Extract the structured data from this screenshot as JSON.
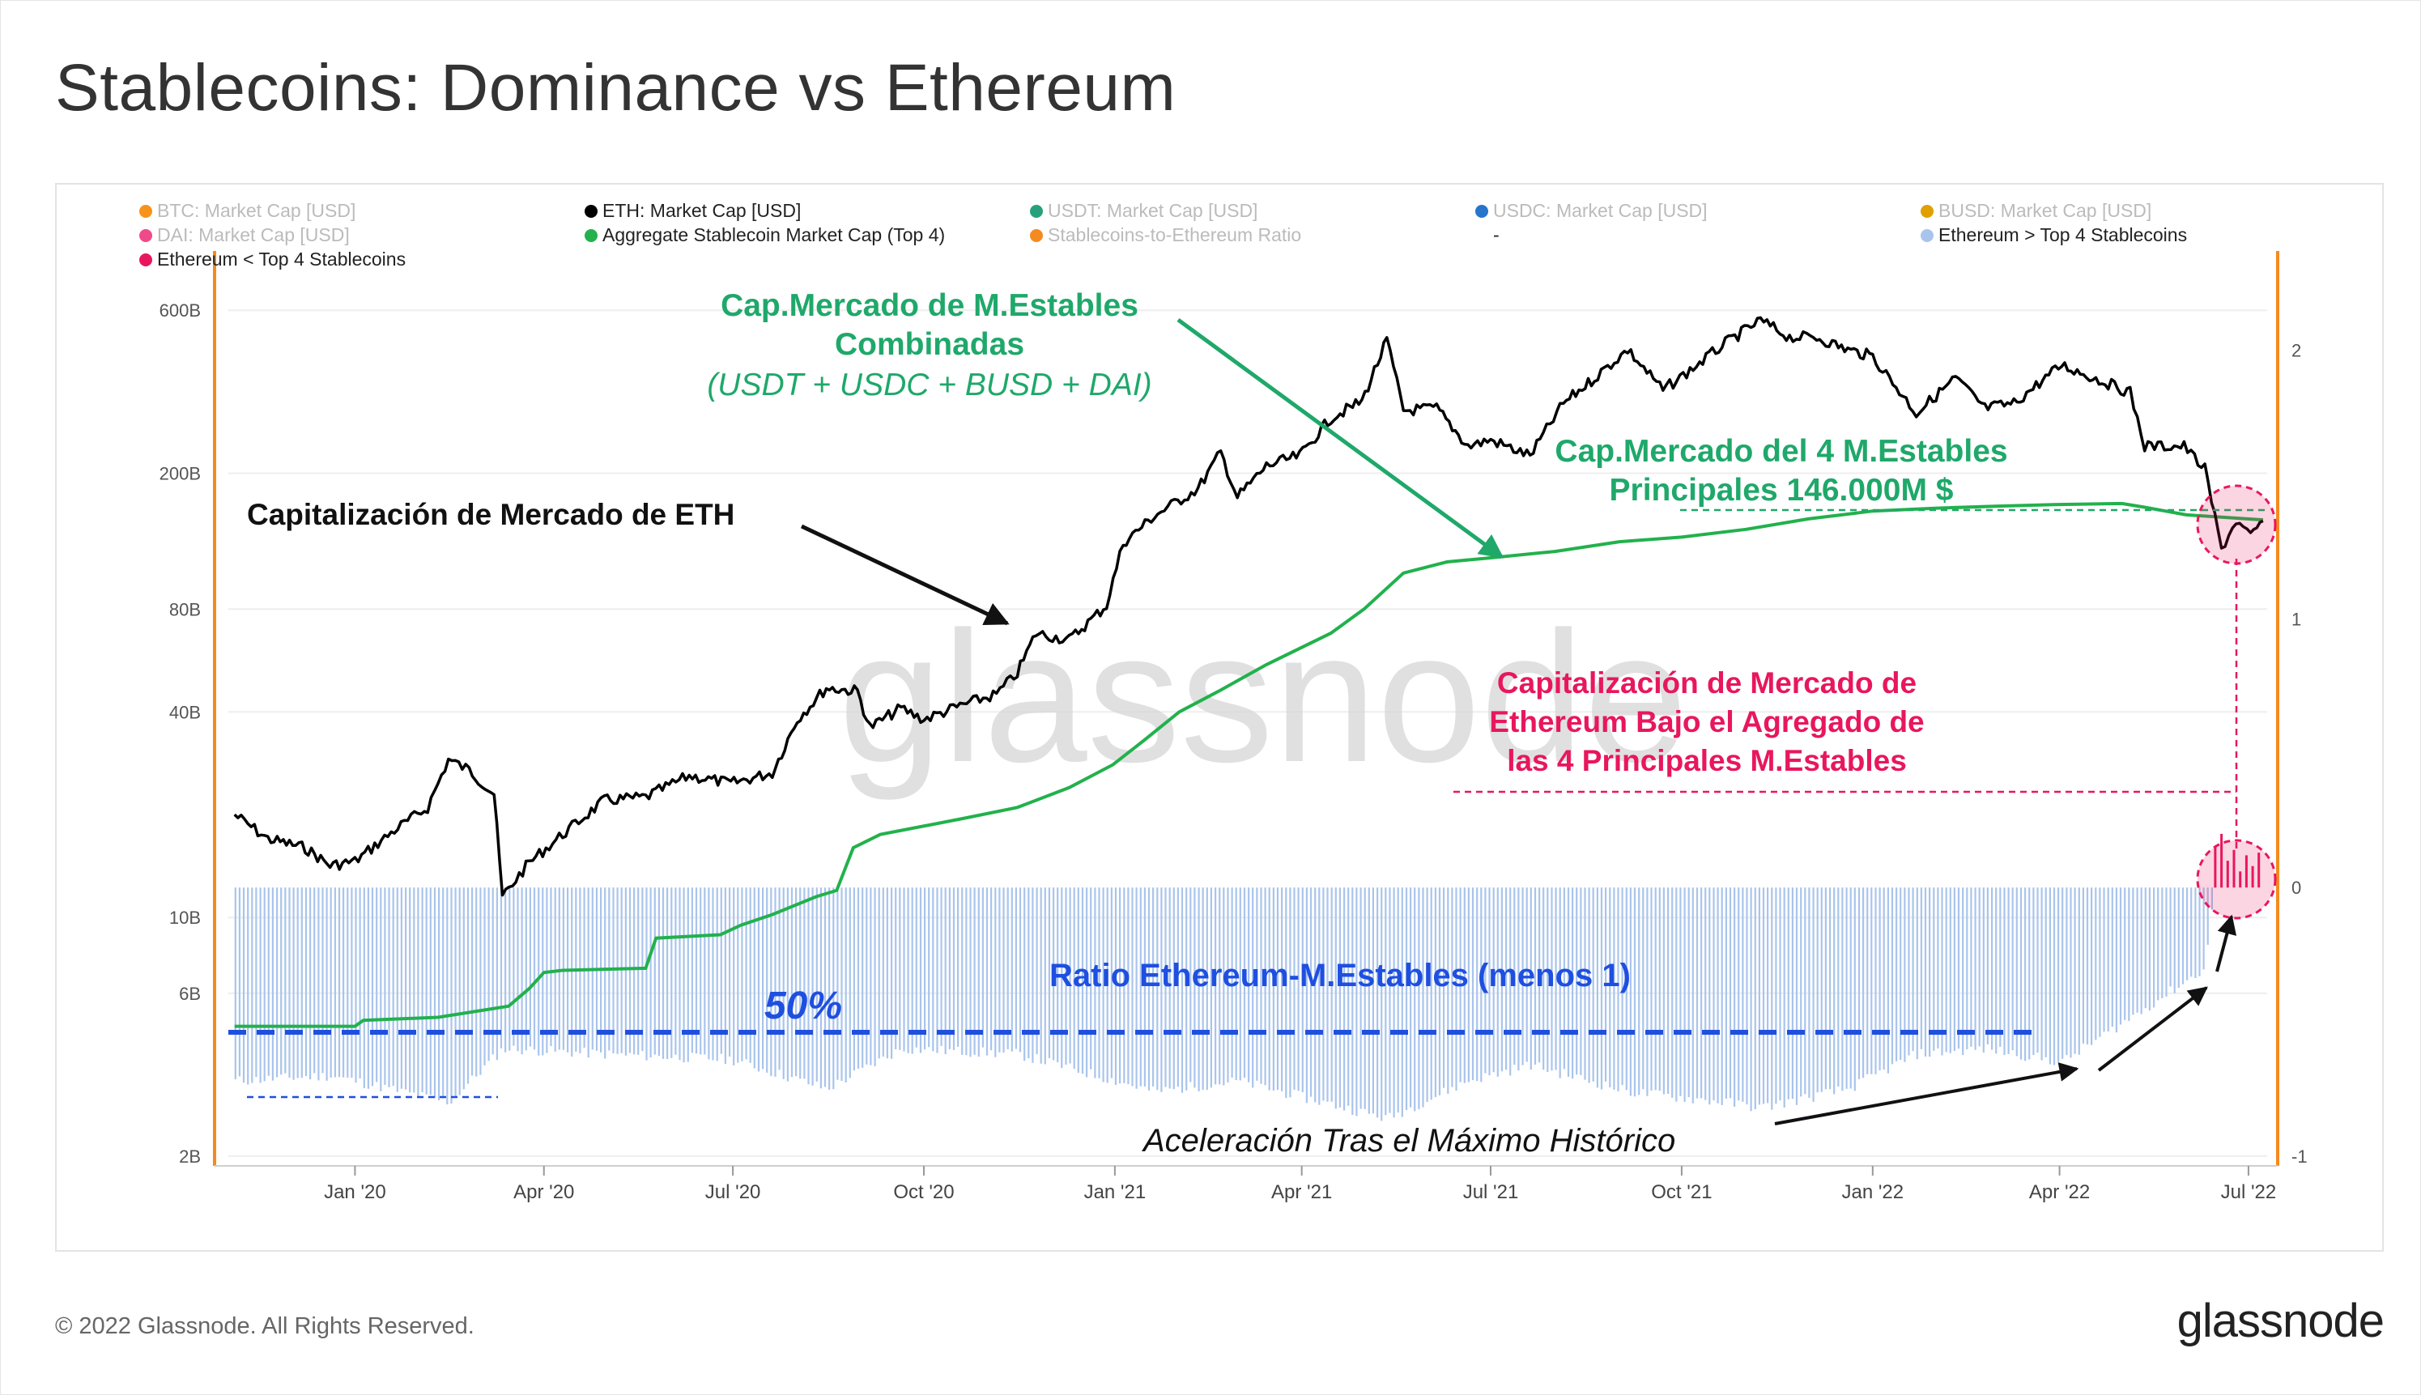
{
  "page": {
    "title": "Stablecoins: Dominance vs Ethereum",
    "copyright": "© 2022 Glassnode. All Rights Reserved.",
    "logo": "glassnode",
    "watermark": "glassnode"
  },
  "chart_data": {
    "type": "line",
    "title": "Stablecoins: Dominance vs Ethereum",
    "legend_placement": "top-left",
    "legend": [
      {
        "label": "BTC: Market Cap [USD]",
        "color": "#f7931a",
        "active": false
      },
      {
        "label": "ETH: Market Cap [USD]",
        "color": "#000000",
        "active": true
      },
      {
        "label": "USDT: Market Cap [USD]",
        "color": "#26a17b",
        "active": false
      },
      {
        "label": "USDC: Market Cap [USD]",
        "color": "#2775ca",
        "active": false
      },
      {
        "label": "BUSD: Market Cap [USD]",
        "color": "#e0a000",
        "active": false
      },
      {
        "label": "DAI: Market Cap [USD]",
        "color": "#ef4a8a",
        "active": false
      },
      {
        "label": "Aggregate Stablecoin Market Cap (Top 4)",
        "color": "#22b14c",
        "active": true
      },
      {
        "label": "Stablecoins-to-Ethereum Ratio",
        "color": "#f58a1f",
        "active": false
      },
      {
        "label": "-",
        "color": "none",
        "active": true
      },
      {
        "label": "Ethereum > Top 4 Stablecoins",
        "color": "#a9c4ec",
        "active": true
      },
      {
        "label": "Ethereum < Top 4 Stablecoins",
        "color": "#e8175d",
        "active": true
      }
    ],
    "x_axis": {
      "type": "date",
      "range": [
        "2019-11-01",
        "2022-07-10"
      ],
      "ticks": [
        {
          "date": "2020-01-01",
          "label": "Jan '20"
        },
        {
          "date": "2020-04-01",
          "label": "Apr '20"
        },
        {
          "date": "2020-07-01",
          "label": "Jul '20"
        },
        {
          "date": "2020-10-01",
          "label": "Oct '20"
        },
        {
          "date": "2021-01-01",
          "label": "Jan '21"
        },
        {
          "date": "2021-04-01",
          "label": "Apr '21"
        },
        {
          "date": "2021-07-01",
          "label": "Jul '21"
        },
        {
          "date": "2021-10-01",
          "label": "Oct '21"
        },
        {
          "date": "2022-01-01",
          "label": "Jan '22"
        },
        {
          "date": "2022-04-01",
          "label": "Apr '22"
        },
        {
          "date": "2022-07-01",
          "label": "Jul '22"
        }
      ]
    },
    "y_left": {
      "scale": "log",
      "unit": "USD",
      "range": [
        2000000000.0,
        700000000000.0
      ],
      "ticks": [
        {
          "value": 2000000000.0,
          "label": "2B"
        },
        {
          "value": 6000000000.0,
          "label": "6B"
        },
        {
          "value": 10000000000.0,
          "label": "10B"
        },
        {
          "value": 40000000000.0,
          "label": "40B"
        },
        {
          "value": 80000000000.0,
          "label": "80B"
        },
        {
          "value": 200000000000.0,
          "label": "200B"
        },
        {
          "value": 600000000000.0,
          "label": "600B"
        }
      ]
    },
    "y_right": {
      "scale": "linear",
      "range": [
        -1,
        2.4
      ],
      "ticks": [
        {
          "value": -1,
          "label": "-1"
        },
        {
          "value": 0,
          "label": "0"
        },
        {
          "value": 1,
          "label": "1"
        },
        {
          "value": 2,
          "label": "2"
        }
      ]
    },
    "series": [
      {
        "name": "ETH: Market Cap [USD]",
        "axis": "left",
        "color": "#000000",
        "points": [
          [
            "2019-11-04",
            20000000000.0
          ],
          [
            "2019-11-20",
            17000000000.0
          ],
          [
            "2019-12-08",
            16000000000.0
          ],
          [
            "2019-12-20",
            14200000000.0
          ],
          [
            "2020-01-01",
            14600000000.0
          ],
          [
            "2020-01-20",
            18000000000.0
          ],
          [
            "2020-02-05",
            21000000000.0
          ],
          [
            "2020-02-15",
            29000000000.0
          ],
          [
            "2020-02-25",
            27000000000.0
          ],
          [
            "2020-03-08",
            23000000000.0
          ],
          [
            "2020-03-12",
            11500000000.0
          ],
          [
            "2020-03-25",
            14500000000.0
          ],
          [
            "2020-04-10",
            17500000000.0
          ],
          [
            "2020-04-30",
            22000000000.0
          ],
          [
            "2020-05-20",
            22500000000.0
          ],
          [
            "2020-06-10",
            26000000000.0
          ],
          [
            "2020-06-30",
            24700000000.0
          ],
          [
            "2020-07-20",
            26500000000.0
          ],
          [
            "2020-08-01",
            38000000000.0
          ],
          [
            "2020-08-15",
            47000000000.0
          ],
          [
            "2020-08-30",
            46000000000.0
          ],
          [
            "2020-09-05",
            36000000000.0
          ],
          [
            "2020-09-20",
            41000000000.0
          ],
          [
            "2020-10-01",
            38000000000.0
          ],
          [
            "2020-10-20",
            42000000000.0
          ],
          [
            "2020-11-05",
            45000000000.0
          ],
          [
            "2020-11-15",
            52000000000.0
          ],
          [
            "2020-11-24",
            68000000000.0
          ],
          [
            "2020-12-10",
            65000000000.0
          ],
          [
            "2020-12-28",
            82000000000.0
          ],
          [
            "2021-01-05",
            125000000000.0
          ],
          [
            "2021-01-20",
            150000000000.0
          ],
          [
            "2021-02-10",
            180000000000.0
          ],
          [
            "2021-02-21",
            230000000000.0
          ],
          [
            "2021-03-01",
            170000000000.0
          ],
          [
            "2021-03-15",
            210000000000.0
          ],
          [
            "2021-03-31",
            225000000000.0
          ],
          [
            "2021-04-15",
            290000000000.0
          ],
          [
            "2021-04-30",
            325000000000.0
          ],
          [
            "2021-05-12",
            490000000000.0
          ],
          [
            "2021-05-20",
            305000000000.0
          ],
          [
            "2021-06-05",
            310000000000.0
          ],
          [
            "2021-06-20",
            240000000000.0
          ],
          [
            "2021-07-01",
            250000000000.0
          ],
          [
            "2021-07-20",
            225000000000.0
          ],
          [
            "2021-08-05",
            320000000000.0
          ],
          [
            "2021-08-20",
            380000000000.0
          ],
          [
            "2021-09-05",
            460000000000.0
          ],
          [
            "2021-09-22",
            350000000000.0
          ],
          [
            "2021-10-05",
            400000000000.0
          ],
          [
            "2021-10-22",
            480000000000.0
          ],
          [
            "2021-11-08",
            560000000000.0
          ],
          [
            "2021-11-22",
            500000000000.0
          ],
          [
            "2021-12-05",
            500000000000.0
          ],
          [
            "2021-12-20",
            460000000000.0
          ],
          [
            "2022-01-01",
            440000000000.0
          ],
          [
            "2022-01-22",
            300000000000.0
          ],
          [
            "2022-02-10",
            380000000000.0
          ],
          [
            "2022-02-24",
            310000000000.0
          ],
          [
            "2022-03-10",
            320000000000.0
          ],
          [
            "2022-04-02",
            415000000000.0
          ],
          [
            "2022-04-20",
            375000000000.0
          ],
          [
            "2022-05-05",
            345000000000.0
          ],
          [
            "2022-05-12",
            240000000000.0
          ],
          [
            "2022-05-31",
            240000000000.0
          ],
          [
            "2022-06-10",
            205000000000.0
          ],
          [
            "2022-06-18",
            120000000000.0
          ],
          [
            "2022-06-25",
            145000000000.0
          ],
          [
            "2022-07-02",
            130000000000.0
          ],
          [
            "2022-07-08",
            145000000000.0
          ]
        ]
      },
      {
        "name": "Aggregate Stablecoin Market Cap (Top 4)",
        "axis": "left",
        "color": "#22b14c",
        "points": [
          [
            "2019-11-04",
            4800000000.0
          ],
          [
            "2020-01-01",
            4800000000.0
          ],
          [
            "2020-01-05",
            5000000000.0
          ],
          [
            "2020-02-10",
            5100000000.0
          ],
          [
            "2020-03-15",
            5500000000.0
          ],
          [
            "2020-03-25",
            6200000000.0
          ],
          [
            "2020-04-01",
            6900000000.0
          ],
          [
            "2020-04-10",
            7000000000.0
          ],
          [
            "2020-05-20",
            7100000000.0
          ],
          [
            "2020-05-25",
            8700000000.0
          ],
          [
            "2020-06-25",
            8900000000.0
          ],
          [
            "2020-07-05",
            9500000000.0
          ],
          [
            "2020-07-20",
            10200000000.0
          ],
          [
            "2020-08-10",
            11500000000.0
          ],
          [
            "2020-08-20",
            12000000000.0
          ],
          [
            "2020-08-28",
            16000000000.0
          ],
          [
            "2020-09-10",
            17500000000.0
          ],
          [
            "2020-10-20",
            19500000000.0
          ],
          [
            "2020-11-15",
            21000000000.0
          ],
          [
            "2020-12-10",
            24000000000.0
          ],
          [
            "2020-12-31",
            28000000000.0
          ],
          [
            "2021-01-15",
            33000000000.0
          ],
          [
            "2021-02-01",
            40000000000.0
          ],
          [
            "2021-02-20",
            46000000000.0
          ],
          [
            "2021-03-15",
            55000000000.0
          ],
          [
            "2021-04-15",
            68000000000.0
          ],
          [
            "2021-05-01",
            80000000000.0
          ],
          [
            "2021-05-20",
            102000000000.0
          ],
          [
            "2021-06-10",
            110000000000.0
          ],
          [
            "2021-07-01",
            113000000000.0
          ],
          [
            "2021-08-01",
            118000000000.0
          ],
          [
            "2021-09-01",
            126000000000.0
          ],
          [
            "2021-10-01",
            130000000000.0
          ],
          [
            "2021-11-01",
            137000000000.0
          ],
          [
            "2021-12-01",
            147000000000.0
          ],
          [
            "2022-01-01",
            155000000000.0
          ],
          [
            "2022-02-01",
            158000000000.0
          ],
          [
            "2022-03-01",
            160000000000.0
          ],
          [
            "2022-04-01",
            162000000000.0
          ],
          [
            "2022-05-01",
            163000000000.0
          ],
          [
            "2022-05-12",
            159000000000.0
          ],
          [
            "2022-06-01",
            151000000000.0
          ],
          [
            "2022-07-08",
            146000000000.0
          ]
        ]
      },
      {
        "name": "Ethereum > Top 4 Stablecoins",
        "axis": "right",
        "color": "#a9c4ec",
        "style": "bars",
        "points": [
          [
            "2019-11-04",
            -0.72
          ],
          [
            "2019-12-20",
            -0.7
          ],
          [
            "2020-02-15",
            -0.8
          ],
          [
            "2020-03-12",
            -0.6
          ],
          [
            "2020-04-30",
            -0.62
          ],
          [
            "2020-06-30",
            -0.64
          ],
          [
            "2020-08-15",
            -0.75
          ],
          [
            "2020-09-20",
            -0.6
          ],
          [
            "2020-11-15",
            -0.62
          ],
          [
            "2021-01-20",
            -0.76
          ],
          [
            "2021-03-01",
            -0.72
          ],
          [
            "2021-05-12",
            -0.86
          ],
          [
            "2021-06-20",
            -0.72
          ],
          [
            "2021-07-20",
            -0.66
          ],
          [
            "2021-09-05",
            -0.76
          ],
          [
            "2021-10-22",
            -0.8
          ],
          [
            "2021-11-08",
            -0.82
          ],
          [
            "2021-12-20",
            -0.75
          ],
          [
            "2022-01-22",
            -0.62
          ],
          [
            "2022-02-24",
            -0.6
          ],
          [
            "2022-04-02",
            -0.65
          ],
          [
            "2022-05-12",
            -0.45
          ],
          [
            "2022-06-10",
            -0.3
          ],
          [
            "2022-06-14",
            0.0
          ]
        ]
      },
      {
        "name": "Ethereum < Top 4 Stablecoins",
        "axis": "right",
        "color": "#e8175d",
        "style": "bars",
        "points": [
          [
            "2022-06-15",
            0.15
          ],
          [
            "2022-06-18",
            0.2
          ],
          [
            "2022-06-21",
            0.1
          ],
          [
            "2022-06-24",
            0.14
          ],
          [
            "2022-06-27",
            0.06
          ],
          [
            "2022-06-30",
            0.12
          ],
          [
            "2022-07-03",
            0.08
          ],
          [
            "2022-07-06",
            0.13
          ]
        ]
      }
    ],
    "annotations": {
      "stable_title_1": "Cap.Mercado de M.Estables",
      "stable_title_2": "Combinadas",
      "stable_title_3": "(USDT + USDC + BUSD + DAI)",
      "eth_label": "Capitalización de Mercado de ETH",
      "top4_1": "Cap.Mercado del 4 M.Estables",
      "top4_2": "Principales 146.000M $",
      "below_1": "Capitalización de Mercado de",
      "below_2": "Ethereum Bajo el Agregado de",
      "below_3": "las 4 Principales M.Estables",
      "ratio_label": "Ratio Ethereum-M.Estables (menos 1)",
      "fifty": "50%",
      "accel": "Aceleración Tras el Máximo Histórico"
    },
    "colors": {
      "annotation_green": "#1fa86a",
      "annotation_pink": "#e8175d",
      "annotation_blue": "#1f4fe0",
      "axis_orange": "#f58a1f"
    }
  }
}
